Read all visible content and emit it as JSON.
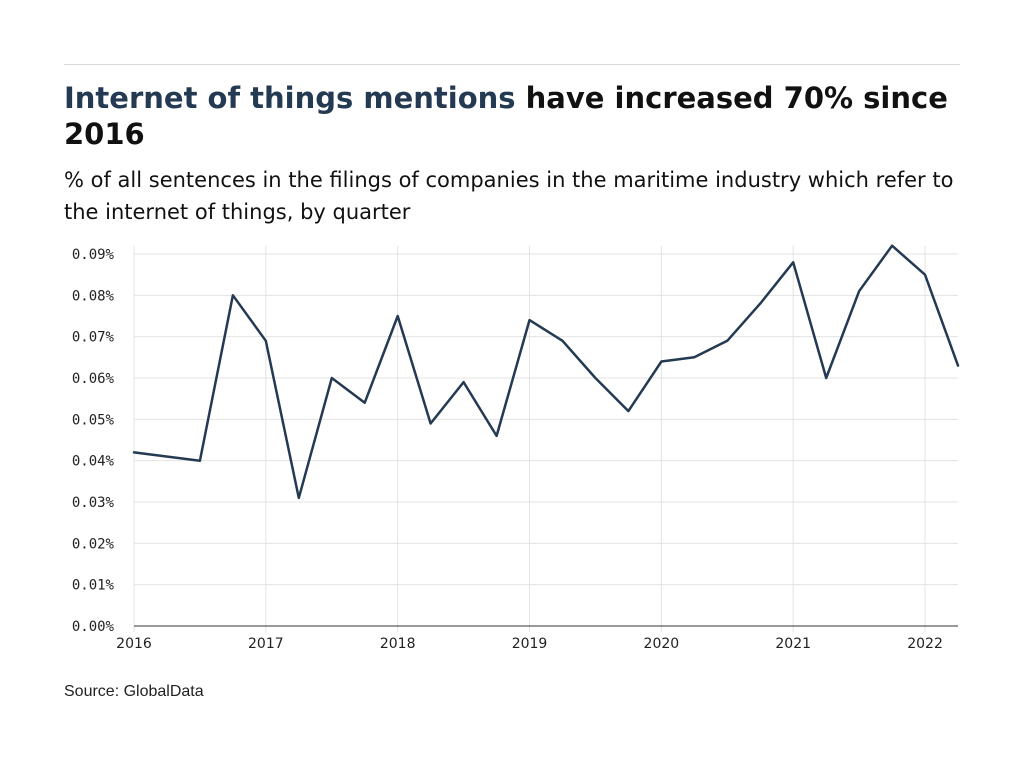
{
  "header": {
    "title_highlight": "Internet of things mentions",
    "title_rest": " have increased 70% since 2016",
    "subtitle": "% of all sentences in the filings of companies in the maritime industry which refer to the internet of things, by quarter"
  },
  "footer": {
    "source": "Source: GlobalData"
  },
  "colors": {
    "line": "#243a52",
    "highlight": "#243a52",
    "grid": "#e3e3e3",
    "axis": "#333333"
  },
  "chart_data": {
    "type": "line",
    "title": "Internet of things mentions have increased 70% since 2016",
    "subtitle": "% of all sentences in the filings of companies in the maritime industry which refer to the internet of things, by quarter",
    "xlabel": "",
    "ylabel": "",
    "ylim": [
      0,
      0.09
    ],
    "xlim": [
      "2016 Q1",
      "2022 Q2"
    ],
    "y_ticks": [
      "0.00%",
      "0.01%",
      "0.02%",
      "0.03%",
      "0.04%",
      "0.05%",
      "0.06%",
      "0.07%",
      "0.08%",
      "0.09%"
    ],
    "x_ticks": [
      "2016",
      "2017",
      "2018",
      "2019",
      "2020",
      "2021",
      "2022"
    ],
    "grid": true,
    "legend": "none",
    "series": [
      {
        "x": [
          "2016 Q1",
          "2016 Q3",
          "2016 Q4",
          "2017 Q1",
          "2017 Q2",
          "2017 Q3",
          "2017 Q4",
          "2018 Q1",
          "2018 Q2",
          "2018 Q3",
          "2018 Q4",
          "2019 Q1",
          "2019 Q2",
          "2019 Q3",
          "2019 Q4",
          "2020 Q1",
          "2020 Q2",
          "2020 Q3",
          "2020 Q4",
          "2021 Q1",
          "2021 Q2",
          "2021 Q3",
          "2021 Q4",
          "2022 Q1",
          "2022 Q2"
        ],
        "values": [
          0.042,
          0.04,
          0.08,
          0.069,
          0.031,
          0.06,
          0.054,
          0.075,
          0.049,
          0.059,
          0.046,
          0.074,
          0.069,
          0.06,
          0.052,
          0.064,
          0.065,
          0.069,
          0.078,
          0.088,
          0.06,
          0.081,
          0.092,
          0.085,
          0.063
        ]
      }
    ]
  }
}
